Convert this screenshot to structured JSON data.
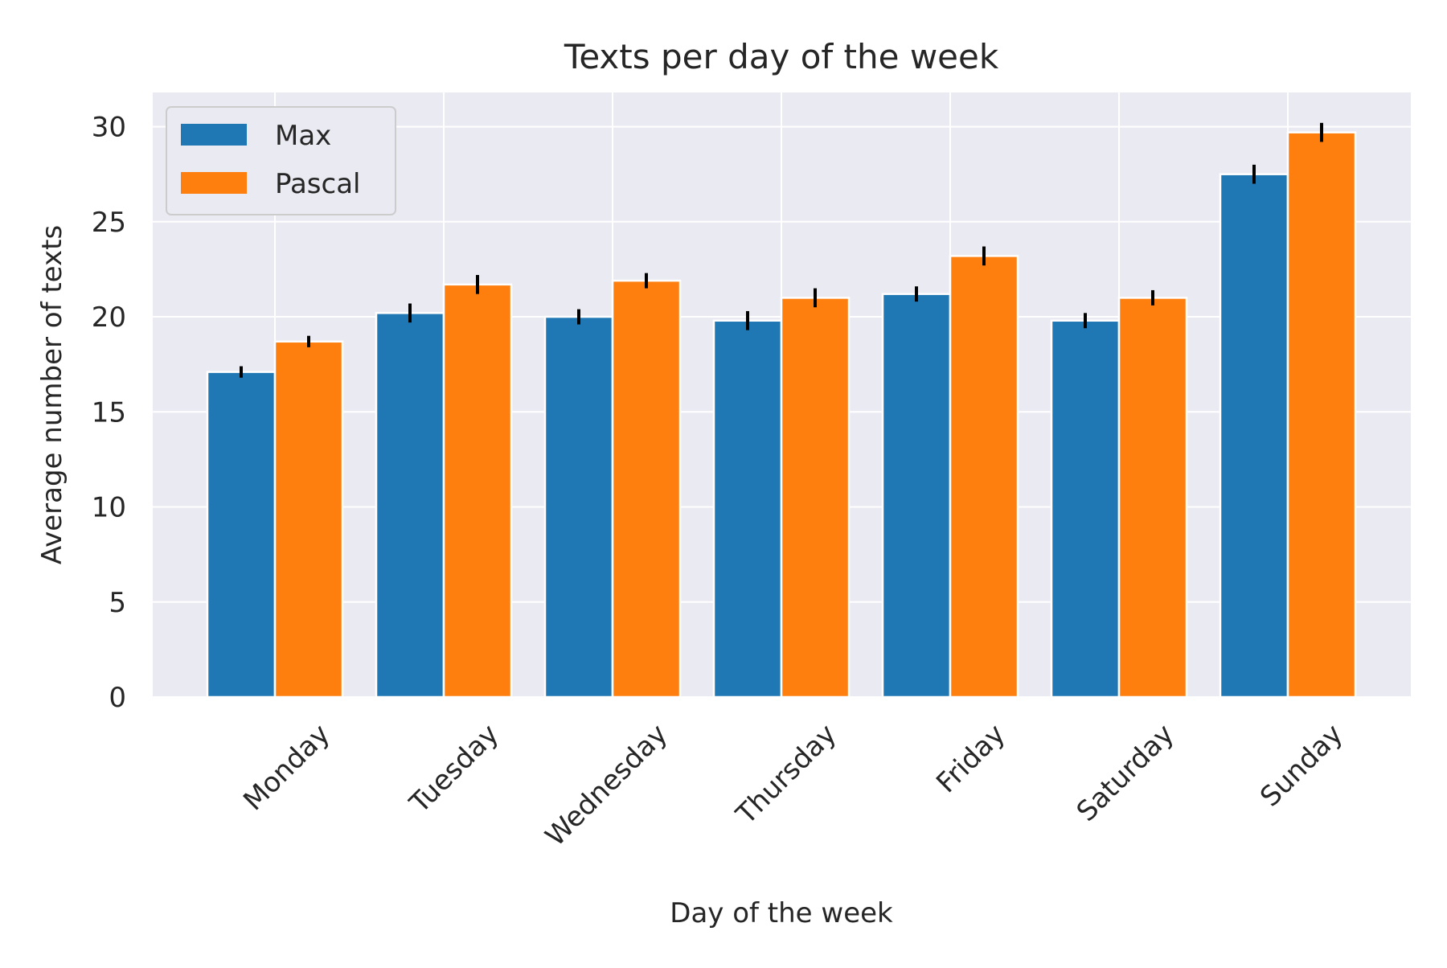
{
  "chart_data": {
    "type": "bar",
    "title": "Texts per day of the week",
    "xlabel": "Day of the week",
    "ylabel": "Average number of texts",
    "categories": [
      "Monday",
      "Tuesday",
      "Wednesday",
      "Thursday",
      "Friday",
      "Saturday",
      "Sunday"
    ],
    "series": [
      {
        "name": "Max",
        "color": "#1f77b4",
        "values": [
          17.1,
          20.2,
          20.0,
          19.8,
          21.2,
          19.8,
          27.5
        ],
        "errors": [
          0.3,
          0.5,
          0.4,
          0.5,
          0.4,
          0.4,
          0.5
        ]
      },
      {
        "name": "Pascal",
        "color": "#ff7f0e",
        "values": [
          18.7,
          21.7,
          21.9,
          21.0,
          23.2,
          21.0,
          29.7
        ],
        "errors": [
          0.3,
          0.5,
          0.4,
          0.5,
          0.5,
          0.4,
          0.5
        ]
      }
    ],
    "ylim": [
      0,
      31.8
    ],
    "yticks": [
      0,
      5,
      10,
      15,
      20,
      25,
      30
    ],
    "grid": true,
    "legend_position": "top-left",
    "background": "#eaeaf2",
    "error_bar_color": "#000000"
  }
}
